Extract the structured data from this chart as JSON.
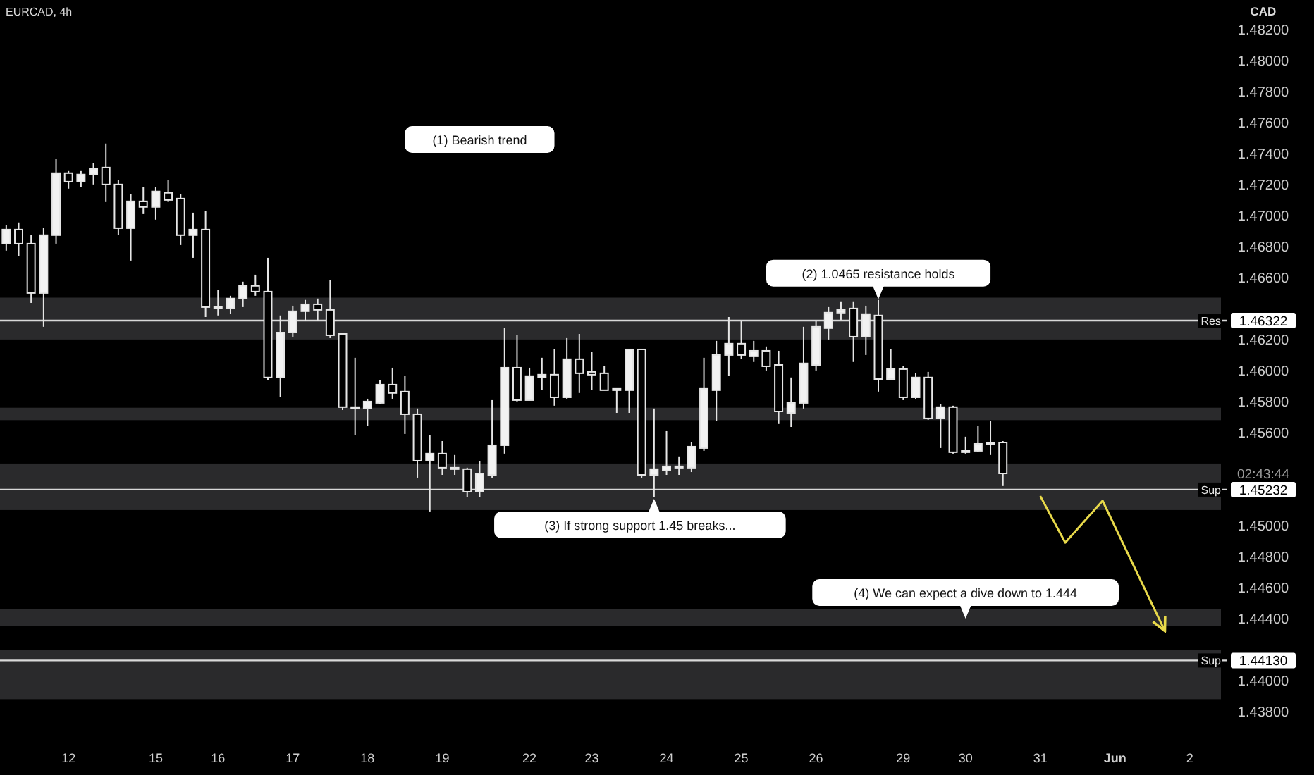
{
  "chart_data": {
    "type": "candlestick",
    "title": "EURCAD, 4h",
    "ylabel": "CAD",
    "categories": [
      null,
      null,
      null,
      null,
      null,
      "12",
      null,
      null,
      null,
      null,
      null,
      null,
      "15",
      null,
      null,
      null,
      null,
      "16",
      null,
      null,
      null,
      null,
      null,
      "17",
      null,
      null,
      null,
      null,
      null,
      "18",
      null,
      null,
      null,
      null,
      null,
      "19",
      null,
      null,
      null,
      null,
      null,
      null,
      "22",
      null,
      null,
      null,
      null,
      "23",
      null,
      null,
      null,
      null,
      null,
      "24",
      null,
      null,
      null,
      null,
      null,
      "25",
      null,
      null,
      null,
      null,
      null,
      "26",
      null,
      null,
      null,
      null,
      null,
      null,
      "29",
      null,
      null,
      null,
      null,
      "30",
      null,
      null,
      null,
      null,
      null,
      "31",
      null,
      null,
      null,
      null,
      null,
      "Jun",
      null,
      null,
      null,
      null,
      null,
      "2",
      null,
      null
    ],
    "ohlc": [
      [
        1.46818,
        1.46936,
        1.46773,
        1.46909
      ],
      [
        1.46909,
        1.46955,
        1.46736,
        1.46818
      ],
      [
        1.46818,
        1.46873,
        1.46436,
        1.465
      ],
      [
        1.465,
        1.46918,
        1.46282,
        1.46873
      ],
      [
        1.46873,
        1.47364,
        1.46818,
        1.47273
      ],
      [
        1.47273,
        1.47291,
        1.47173,
        1.47218
      ],
      [
        1.47218,
        1.47291,
        1.47182,
        1.47264
      ],
      [
        1.47264,
        1.47336,
        1.472,
        1.473
      ],
      [
        1.47309,
        1.47464,
        1.47091,
        1.472
      ],
      [
        1.472,
        1.47227,
        1.46873,
        1.46918
      ],
      [
        1.46918,
        1.47136,
        1.46709,
        1.47091
      ],
      [
        1.47091,
        1.47182,
        1.47009,
        1.47055
      ],
      [
        1.47055,
        1.47182,
        1.46973,
        1.47155
      ],
      [
        1.47146,
        1.47227,
        1.47091,
        1.471
      ],
      [
        1.47109,
        1.47136,
        1.46809,
        1.46873
      ],
      [
        1.46873,
        1.47018,
        1.46727,
        1.46909
      ],
      [
        1.46909,
        1.47027,
        1.46345,
        1.46409
      ],
      [
        1.46409,
        1.46518,
        1.46355,
        1.464
      ],
      [
        1.464,
        1.46482,
        1.46364,
        1.46464
      ],
      [
        1.46464,
        1.46573,
        1.46409,
        1.46546
      ],
      [
        1.46546,
        1.46618,
        1.46482,
        1.46509
      ],
      [
        1.46509,
        1.46727,
        1.45936,
        1.45955
      ],
      [
        1.45955,
        1.46355,
        1.45827,
        1.46245
      ],
      [
        1.46245,
        1.46418,
        1.46218,
        1.46382
      ],
      [
        1.46382,
        1.46455,
        1.46318,
        1.46427
      ],
      [
        1.46427,
        1.46464,
        1.46318,
        1.46391
      ],
      [
        1.46391,
        1.46582,
        1.46209,
        1.46227
      ],
      [
        1.46236,
        1.46236,
        1.45745,
        1.45764
      ],
      [
        1.45764,
        1.46082,
        1.45582,
        1.45755
      ],
      [
        1.45755,
        1.45818,
        1.45645,
        1.458
      ],
      [
        1.45791,
        1.45936,
        1.45782,
        1.45909
      ],
      [
        1.45909,
        1.46018,
        1.45818,
        1.45855
      ],
      [
        1.45864,
        1.45964,
        1.45591,
        1.45718
      ],
      [
        1.45718,
        1.45755,
        1.45309,
        1.45418
      ],
      [
        1.45418,
        1.45582,
        1.45091,
        1.45464
      ],
      [
        1.45464,
        1.45545,
        1.45327,
        1.45373
      ],
      [
        1.45373,
        1.45455,
        1.45327,
        1.45364
      ],
      [
        1.45364,
        1.45373,
        1.45182,
        1.45218
      ],
      [
        1.45218,
        1.45418,
        1.45182,
        1.45336
      ],
      [
        1.45327,
        1.45809,
        1.45309,
        1.45518
      ],
      [
        1.45518,
        1.46273,
        1.45464,
        1.46018
      ],
      [
        1.46018,
        1.46227,
        1.458,
        1.45809
      ],
      [
        1.45809,
        1.46018,
        1.45809,
        1.45964
      ],
      [
        1.45955,
        1.46082,
        1.45873,
        1.45973
      ],
      [
        1.45973,
        1.46136,
        1.45773,
        1.45827
      ],
      [
        1.45827,
        1.46209,
        1.45818,
        1.46073
      ],
      [
        1.46073,
        1.46236,
        1.45855,
        1.45982
      ],
      [
        1.45991,
        1.46118,
        1.45873,
        1.45973
      ],
      [
        1.45982,
        1.46027,
        1.45873,
        1.45873
      ],
      [
        1.45882,
        1.45882,
        1.45727,
        1.45873
      ],
      [
        1.45873,
        1.46136,
        1.45727,
        1.46136
      ],
      [
        1.46136,
        1.46136,
        1.45309,
        1.45327
      ],
      [
        1.45327,
        1.45755,
        1.45182,
        1.45364
      ],
      [
        1.45355,
        1.45609,
        1.45327,
        1.45382
      ],
      [
        1.45382,
        1.45446,
        1.45327,
        1.45373
      ],
      [
        1.45373,
        1.45536,
        1.45345,
        1.45509
      ],
      [
        1.455,
        1.46082,
        1.45482,
        1.45882
      ],
      [
        1.45873,
        1.46191,
        1.45673,
        1.461
      ],
      [
        1.461,
        1.46345,
        1.45964,
        1.46173
      ],
      [
        1.46173,
        1.46318,
        1.46073,
        1.461
      ],
      [
        1.46091,
        1.46191,
        1.46055,
        1.46127
      ],
      [
        1.46127,
        1.46155,
        1.46,
        1.46027
      ],
      [
        1.46036,
        1.46127,
        1.45655,
        1.45736
      ],
      [
        1.45727,
        1.45955,
        1.45636,
        1.45791
      ],
      [
        1.45791,
        1.46282,
        1.45755,
        1.46046
      ],
      [
        1.46036,
        1.46318,
        1.46,
        1.46282
      ],
      [
        1.46273,
        1.46409,
        1.462,
        1.46373
      ],
      [
        1.46373,
        1.46446,
        1.46327,
        1.46391
      ],
      [
        1.464,
        1.46446,
        1.46055,
        1.46218
      ],
      [
        1.46218,
        1.46418,
        1.461,
        1.46364
      ],
      [
        1.46355,
        1.46455,
        1.45864,
        1.45945
      ],
      [
        1.45945,
        1.46136,
        1.45936,
        1.46009
      ],
      [
        1.46009,
        1.46027,
        1.45809,
        1.45827
      ],
      [
        1.45827,
        1.45982,
        1.45818,
        1.45955
      ],
      [
        1.45955,
        1.45991,
        1.45682,
        1.45691
      ],
      [
        1.45691,
        1.45782,
        1.455,
        1.45764
      ],
      [
        1.45764,
        1.45773,
        1.45464,
        1.45473
      ],
      [
        1.45482,
        1.45573,
        1.45464,
        1.45473
      ],
      [
        1.45482,
        1.45645,
        1.45473,
        1.45527
      ],
      [
        1.45527,
        1.45673,
        1.45455,
        1.45536
      ],
      [
        1.45536,
        1.45545,
        1.45255,
        1.45336
      ],
      null,
      null,
      null,
      null,
      null,
      null,
      null,
      null,
      null,
      null,
      null,
      null,
      null,
      null,
      null,
      null,
      null
    ],
    "series": [
      {
        "type": "line",
        "color": "#e8d94a",
        "values": [
          null,
          null,
          null,
          null,
          null,
          null,
          null,
          null,
          null,
          null,
          null,
          null,
          null,
          null,
          null,
          null,
          null,
          null,
          null,
          null,
          null,
          null,
          null,
          null,
          null,
          null,
          null,
          null,
          null,
          null,
          null,
          null,
          null,
          null,
          null,
          null,
          null,
          null,
          null,
          null,
          null,
          null,
          null,
          null,
          null,
          null,
          null,
          null,
          null,
          null,
          null,
          null,
          null,
          null,
          null,
          null,
          null,
          null,
          null,
          null,
          null,
          null,
          null,
          null,
          null,
          null,
          null,
          null,
          null,
          null,
          null,
          null,
          null,
          null,
          null,
          null,
          null,
          null,
          null,
          null,
          null,
          null,
          null,
          1.4519,
          null,
          1.4489,
          null,
          null,
          1.4516,
          null,
          null,
          null,
          null,
          1.4432,
          null,
          null,
          null,
          null
        ]
      }
    ],
    "ylim": [
      1.438,
      1.4839
    ],
    "yticks": [
      {
        "value": 1.482,
        "label": "1.48200"
      },
      {
        "value": 1.48,
        "label": "1.48000"
      },
      {
        "value": 1.478,
        "label": "1.47800"
      },
      {
        "value": 1.476,
        "label": "1.47600"
      },
      {
        "value": 1.474,
        "label": "1.47400"
      },
      {
        "value": 1.472,
        "label": "1.47200"
      },
      {
        "value": 1.47,
        "label": "1.47000"
      },
      {
        "value": 1.468,
        "label": "1.46800"
      },
      {
        "value": 1.466,
        "label": "1.46600"
      },
      {
        "value": 1.46322,
        "label": "1.46322"
      },
      {
        "value": 1.462,
        "label": "1.46200"
      },
      {
        "value": 1.46,
        "label": "1.46000"
      },
      {
        "value": 1.458,
        "label": "1.45800"
      },
      {
        "value": 1.456,
        "label": "1.45600"
      },
      {
        "value": 1.45232,
        "label": "1.45232"
      },
      {
        "value": 1.45,
        "label": "1.45000"
      },
      {
        "value": 1.448,
        "label": "1.44800"
      },
      {
        "value": 1.446,
        "label": "1.44600"
      },
      {
        "value": 1.444,
        "label": "1.44400"
      },
      {
        "value": 1.4413,
        "label": "1.44130"
      },
      {
        "value": 1.44,
        "label": "1.44000"
      },
      {
        "value": 1.438,
        "label": "1.43800"
      }
    ],
    "ref_lines": [
      {
        "axis": "y",
        "value": 1.46322,
        "label": "Res",
        "color": "#d9d9d9"
      },
      {
        "axis": "y",
        "value": 1.45232,
        "label": "Sup",
        "color": "#d9d9d9"
      },
      {
        "axis": "y",
        "value": 1.4413,
        "label": "Sup",
        "color": "#d9d9d9"
      }
    ],
    "bands": [
      {
        "axis": "y",
        "from": 1.462,
        "to": 1.4647,
        "color": "#2a2a2c"
      },
      {
        "axis": "y",
        "from": 1.4568,
        "to": 1.4576,
        "color": "#2a2a2c"
      },
      {
        "axis": "y",
        "from": 1.451,
        "to": 1.454,
        "color": "#2a2a2c"
      },
      {
        "axis": "y",
        "from": 1.4435,
        "to": 1.4446,
        "color": "#2a2a2c"
      },
      {
        "axis": "y",
        "from": 1.4388,
        "to": 1.442,
        "color": "#2a2a2c"
      }
    ],
    "annotations": [
      "(1) Bearish trend",
      {
        "text": "(2) 1.0465 resistance holds",
        "y": 1.4646
      },
      "(3) If strong support 1.45 breaks...",
      {
        "text": "(4) We can expect a dive down to 1.444",
        "y": 1.444
      },
      "02:43:44"
    ],
    "grid": false
  }
}
